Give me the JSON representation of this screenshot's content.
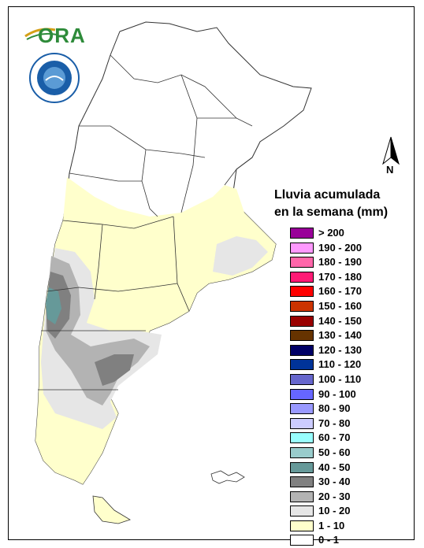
{
  "legend": {
    "title_line1": "Lluvia acumulada",
    "title_line2": "en la semana (mm)",
    "classes": [
      {
        "label": "> 200",
        "color": "#990099"
      },
      {
        "label": "190 - 200",
        "color": "#ff99ff"
      },
      {
        "label": "180 - 190",
        "color": "#ff66aa"
      },
      {
        "label": "170 - 180",
        "color": "#ff1a75"
      },
      {
        "label": "160 - 170",
        "color": "#ff0000"
      },
      {
        "label": "150 - 160",
        "color": "#cc3300"
      },
      {
        "label": "140 - 150",
        "color": "#990000"
      },
      {
        "label": "130 - 140",
        "color": "#663300"
      },
      {
        "label": "120 - 130",
        "color": "#000066"
      },
      {
        "label": "110 - 120",
        "color": "#003399"
      },
      {
        "label": "100 - 110",
        "color": "#6666cc"
      },
      {
        "label": "90 - 100",
        "color": "#6666ff"
      },
      {
        "label": "80 - 90",
        "color": "#9999ff"
      },
      {
        "label": "70 - 80",
        "color": "#ccccff"
      },
      {
        "label": "60 - 70",
        "color": "#99ffff"
      },
      {
        "label": "50 - 60",
        "color": "#99cccc"
      },
      {
        "label": "40 - 50",
        "color": "#669999"
      },
      {
        "label": "30 - 40",
        "color": "#808080"
      },
      {
        "label": "20 - 30",
        "color": "#b3b3b3"
      },
      {
        "label": "10 - 20",
        "color": "#e6e6e6"
      },
      {
        "label": "1 - 10",
        "color": "#ffffcc"
      },
      {
        "label": "0 - 1",
        "color": "#ffffff"
      }
    ]
  },
  "logo": {
    "text": "ORA"
  },
  "north_arrow": {
    "label": "N"
  },
  "seal_icon": "smn-seal-icon"
}
